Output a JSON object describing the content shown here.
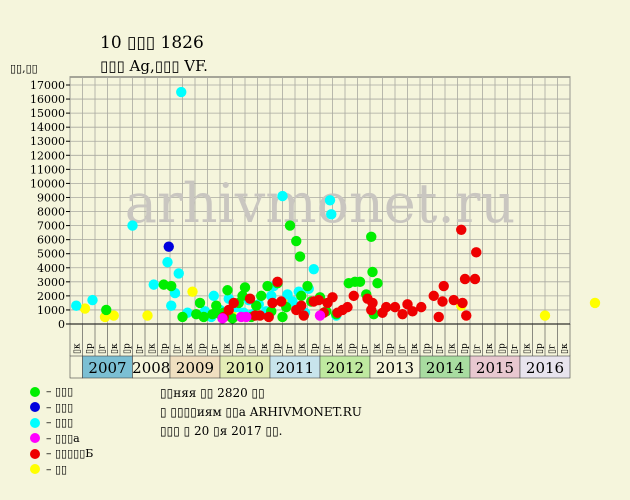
{
  "header": {
    "title_line1": "10 ▯▯▯ 1826",
    "title_line2": "▯▯▯ Ag,▯▯▯ VF.",
    "y_unit": "▯▯,▯▯"
  },
  "watermark": "arhivmonet.ru",
  "legend": [
    {
      "label": "– ▯▯▯",
      "color": "#00ee00"
    },
    {
      "label": "– ▯▯▯",
      "color": "#0000dd"
    },
    {
      "label": "– ▯▯▯",
      "color": "#00ffff"
    },
    {
      "label": "– ▯▯▯а",
      "color": "#ff00ff"
    },
    {
      "label": "– ▯▯▯▯▯Б",
      "color": "#ee0000"
    },
    {
      "label": "– ▯▯",
      "color": "#ffff00"
    }
  ],
  "notes": [
    "▯▯няя ▯▯ 2820 ▯▯",
    "▯ ▯▯▯▯иям ▯▯а ARHIVMONET.RU",
    "▯▯▯ ▯ 20 ▯я 2017 ▯▯."
  ],
  "chart_data": {
    "type": "scatter",
    "ylim": [
      0,
      17000
    ],
    "y_ticks": [
      0,
      1000,
      2000,
      3000,
      4000,
      5000,
      6000,
      7000,
      8000,
      9000,
      10000,
      11000,
      12000,
      13000,
      14000,
      15000,
      16000,
      17000
    ],
    "years": [
      {
        "label": "2007",
        "color": "#7bbfd3",
        "quarters": 4
      },
      {
        "label": "2008",
        "color": "#f5f5dc",
        "quarters": 3
      },
      {
        "label": "2009",
        "color": "#f0dfc0",
        "quarters": 4
      },
      {
        "label": "2010",
        "color": "#e4eeb6",
        "quarters": 4
      },
      {
        "label": "2011",
        "color": "#c8e4ec",
        "quarters": 4
      },
      {
        "label": "2012",
        "color": "#bfe9a0",
        "quarters": 4
      },
      {
        "label": "2013",
        "color": "#f5f5dc",
        "quarters": 4
      },
      {
        "label": "2014",
        "color": "#a8dca0",
        "quarters": 4
      },
      {
        "label": "2015",
        "color": "#e8c8d0",
        "quarters": 4
      },
      {
        "label": "2016",
        "color": "#e8e4ee",
        "quarters": 4
      }
    ],
    "x_tick_labels": [
      "▯к",
      "▯р",
      "▯г",
      "▯к",
      "▯р",
      "▯г",
      "▯к",
      "▯р",
      "▯г",
      "▯к",
      "▯р",
      "▯г",
      "▯к",
      "▯р",
      "▯г",
      "▯к",
      "▯р",
      "▯г",
      "▯к",
      "▯р",
      "▯г",
      "▯к",
      "▯р",
      "▯г",
      "▯к",
      "▯р",
      "▯г",
      "▯к",
      "▯р",
      "▯г",
      "▯к",
      "▯р",
      "▯г",
      "▯к",
      "▯р",
      "▯г",
      "▯к",
      "▯р",
      "▯г",
      "▯к"
    ],
    "series": [
      {
        "color": "#ffff00",
        "points": [
          [
            0.7,
            1100
          ],
          [
            2.3,
            500
          ],
          [
            3.0,
            600
          ],
          [
            5.7,
            600
          ],
          [
            9.3,
            2300
          ],
          [
            12.4,
            700
          ],
          [
            16.8,
            1400
          ],
          [
            30.8,
            1300
          ],
          [
            37.5,
            600
          ],
          [
            41.5,
            1500
          ]
        ]
      },
      {
        "color": "#00ffff",
        "points": [
          [
            0.0,
            1300
          ],
          [
            1.3,
            1700
          ],
          [
            4.5,
            7000
          ],
          [
            6.2,
            2800
          ],
          [
            7.3,
            4400
          ],
          [
            7.6,
            1300
          ],
          [
            7.9,
            2200
          ],
          [
            8.2,
            3600
          ],
          [
            8.4,
            16500
          ],
          [
            8.9,
            800
          ],
          [
            10.3,
            900
          ],
          [
            10.8,
            500
          ],
          [
            11.0,
            2000
          ],
          [
            11.5,
            1000
          ],
          [
            12.2,
            1800
          ],
          [
            12.8,
            1200
          ],
          [
            13.4,
            800
          ],
          [
            13.8,
            1700
          ],
          [
            14.1,
            700
          ],
          [
            14.6,
            1400
          ],
          [
            15.2,
            900
          ],
          [
            15.6,
            2000
          ],
          [
            15.8,
            2700
          ],
          [
            16.5,
            9100
          ],
          [
            16.9,
            2100
          ],
          [
            17.3,
            1600
          ],
          [
            17.8,
            2300
          ],
          [
            18.3,
            800
          ],
          [
            18.6,
            2500
          ],
          [
            19.0,
            3900
          ],
          [
            20.3,
            8800
          ],
          [
            20.4,
            7800
          ],
          [
            20.8,
            600
          ]
        ]
      },
      {
        "color": "#0000dd",
        "points": [
          [
            7.4,
            5500
          ]
        ]
      },
      {
        "color": "#00ee00",
        "points": [
          [
            2.4,
            1000
          ],
          [
            7.0,
            2800
          ],
          [
            7.6,
            2700
          ],
          [
            8.5,
            500
          ],
          [
            9.6,
            700
          ],
          [
            9.9,
            1500
          ],
          [
            10.2,
            500
          ],
          [
            10.9,
            700
          ],
          [
            11.2,
            1300
          ],
          [
            11.5,
            700
          ],
          [
            11.8,
            800
          ],
          [
            12.1,
            2400
          ],
          [
            12.5,
            400
          ],
          [
            13.0,
            1500
          ],
          [
            13.3,
            2000
          ],
          [
            13.5,
            2600
          ],
          [
            14.0,
            500
          ],
          [
            14.4,
            1300
          ],
          [
            14.8,
            2000
          ],
          [
            15.3,
            2700
          ],
          [
            15.6,
            900
          ],
          [
            16.1,
            2900
          ],
          [
            16.5,
            500
          ],
          [
            16.8,
            1200
          ],
          [
            17.1,
            7000
          ],
          [
            17.6,
            5900
          ],
          [
            17.9,
            4800
          ],
          [
            18.0,
            2000
          ],
          [
            18.5,
            2700
          ],
          [
            18.8,
            1600
          ],
          [
            19.5,
            1900
          ],
          [
            20.0,
            900
          ],
          [
            20.8,
            700
          ],
          [
            21.8,
            2900
          ],
          [
            22.3,
            3000
          ],
          [
            22.7,
            3000
          ],
          [
            23.2,
            2100
          ],
          [
            23.6,
            6200
          ],
          [
            23.7,
            3700
          ],
          [
            23.8,
            700
          ],
          [
            24.1,
            2900
          ]
        ]
      },
      {
        "color": "#ee0000",
        "points": [
          [
            11.8,
            500
          ],
          [
            12.2,
            1000
          ],
          [
            12.6,
            1500
          ],
          [
            13.9,
            1800
          ],
          [
            14.3,
            600
          ],
          [
            14.7,
            600
          ],
          [
            15.4,
            500
          ],
          [
            15.7,
            1500
          ],
          [
            16.1,
            3000
          ],
          [
            16.4,
            1600
          ],
          [
            17.6,
            1000
          ],
          [
            18.0,
            1300
          ],
          [
            18.2,
            600
          ],
          [
            19.0,
            1600
          ],
          [
            19.4,
            1700
          ],
          [
            19.8,
            800
          ],
          [
            20.1,
            1500
          ],
          [
            20.5,
            1900
          ],
          [
            20.9,
            800
          ],
          [
            21.3,
            1000
          ],
          [
            21.7,
            1200
          ],
          [
            22.2,
            2000
          ],
          [
            23.3,
            1800
          ],
          [
            23.6,
            1000
          ],
          [
            23.7,
            1500
          ],
          [
            24.5,
            800
          ],
          [
            24.8,
            1200
          ],
          [
            25.5,
            1200
          ],
          [
            26.1,
            700
          ],
          [
            26.5,
            1400
          ],
          [
            26.9,
            900
          ],
          [
            27.6,
            1200
          ],
          [
            28.6,
            2000
          ],
          [
            29.0,
            500
          ],
          [
            29.3,
            1600
          ],
          [
            29.4,
            2700
          ],
          [
            30.2,
            1700
          ],
          [
            30.8,
            6700
          ],
          [
            30.9,
            1500
          ],
          [
            31.1,
            3200
          ],
          [
            31.2,
            600
          ],
          [
            31.9,
            3200
          ],
          [
            32.0,
            5100
          ]
        ]
      },
      {
        "color": "#ff00ff",
        "points": [
          [
            11.7,
            400
          ],
          [
            13.2,
            500
          ],
          [
            13.6,
            500
          ],
          [
            19.5,
            600
          ]
        ]
      }
    ]
  }
}
